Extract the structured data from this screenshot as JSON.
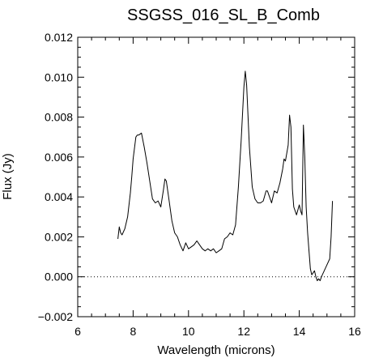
{
  "chart_data": {
    "type": "line",
    "title": "SSGSS_016_SL_B_Comb",
    "xlabel": "Wavelength (microns)",
    "ylabel": "Flux (Jy)",
    "xlim": [
      6,
      16
    ],
    "ylim": [
      -0.002,
      0.012
    ],
    "xticks": [
      6,
      8,
      10,
      12,
      14,
      16
    ],
    "yticks": [
      -0.002,
      0.0,
      0.002,
      0.004,
      0.006,
      0.008,
      0.01,
      0.012
    ],
    "xtick_labels": [
      "6",
      "8",
      "10",
      "12",
      "14",
      "16"
    ],
    "ytick_labels": [
      "−0.002",
      "0.000",
      "0.002",
      "0.004",
      "0.006",
      "0.008",
      "0.010",
      "0.012"
    ],
    "x_minor_step": 0.5,
    "y_minor_step": 0.0005,
    "reference_line": {
      "y": 0.0,
      "style": "dotted"
    },
    "grid": false,
    "series": [
      {
        "color": "#000000",
        "x": [
          7.45,
          7.5,
          7.55,
          7.6,
          7.7,
          7.8,
          7.9,
          7.95,
          8.0,
          8.1,
          8.15,
          8.2,
          8.3,
          8.4,
          8.5,
          8.6,
          8.7,
          8.8,
          8.9,
          9.0,
          9.1,
          9.15,
          9.2,
          9.3,
          9.4,
          9.5,
          9.6,
          9.7,
          9.8,
          9.9,
          10.0,
          10.1,
          10.2,
          10.3,
          10.4,
          10.5,
          10.6,
          10.7,
          10.8,
          10.9,
          11.0,
          11.1,
          11.2,
          11.3,
          11.4,
          11.5,
          11.6,
          11.7,
          11.8,
          11.9,
          12.0,
          12.05,
          12.1,
          12.2,
          12.3,
          12.4,
          12.5,
          12.6,
          12.7,
          12.8,
          12.85,
          12.9,
          13.0,
          13.1,
          13.2,
          13.3,
          13.4,
          13.45,
          13.5,
          13.6,
          13.65,
          13.7,
          13.75,
          13.8,
          13.9,
          14.0,
          14.05,
          14.1,
          14.15,
          14.2,
          14.25,
          14.3,
          14.35,
          14.4,
          14.45,
          14.5,
          14.55,
          14.6,
          14.65,
          14.7,
          14.75,
          14.8,
          14.9,
          15.0,
          15.1,
          15.15,
          15.2
        ],
        "y": [
          0.0019,
          0.0025,
          0.0022,
          0.0021,
          0.0024,
          0.003,
          0.0042,
          0.005,
          0.0059,
          0.007,
          0.0071,
          0.0071,
          0.0072,
          0.0065,
          0.0057,
          0.0048,
          0.0039,
          0.0037,
          0.0038,
          0.0035,
          0.0044,
          0.0049,
          0.0048,
          0.0038,
          0.0028,
          0.0022,
          0.002,
          0.0016,
          0.0013,
          0.0017,
          0.0014,
          0.0015,
          0.0016,
          0.0018,
          0.0016,
          0.0014,
          0.0013,
          0.0014,
          0.0013,
          0.0014,
          0.0012,
          0.0013,
          0.0014,
          0.0019,
          0.002,
          0.0022,
          0.0021,
          0.0026,
          0.0045,
          0.0068,
          0.0095,
          0.0103,
          0.0096,
          0.0065,
          0.0045,
          0.0039,
          0.0037,
          0.0037,
          0.0038,
          0.0043,
          0.0043,
          0.0041,
          0.0037,
          0.0043,
          0.0042,
          0.0047,
          0.0054,
          0.0059,
          0.0058,
          0.0066,
          0.0081,
          0.0075,
          0.0044,
          0.0035,
          0.0031,
          0.0036,
          0.0033,
          0.0031,
          0.0076,
          0.006,
          0.0035,
          0.0022,
          0.0013,
          0.0004,
          0.0001,
          0.0002,
          0.0003,
          0.0,
          -0.0002,
          -0.0001,
          -0.0002,
          0.0,
          0.0003,
          0.0006,
          0.0009,
          0.002,
          0.0038
        ]
      }
    ]
  }
}
